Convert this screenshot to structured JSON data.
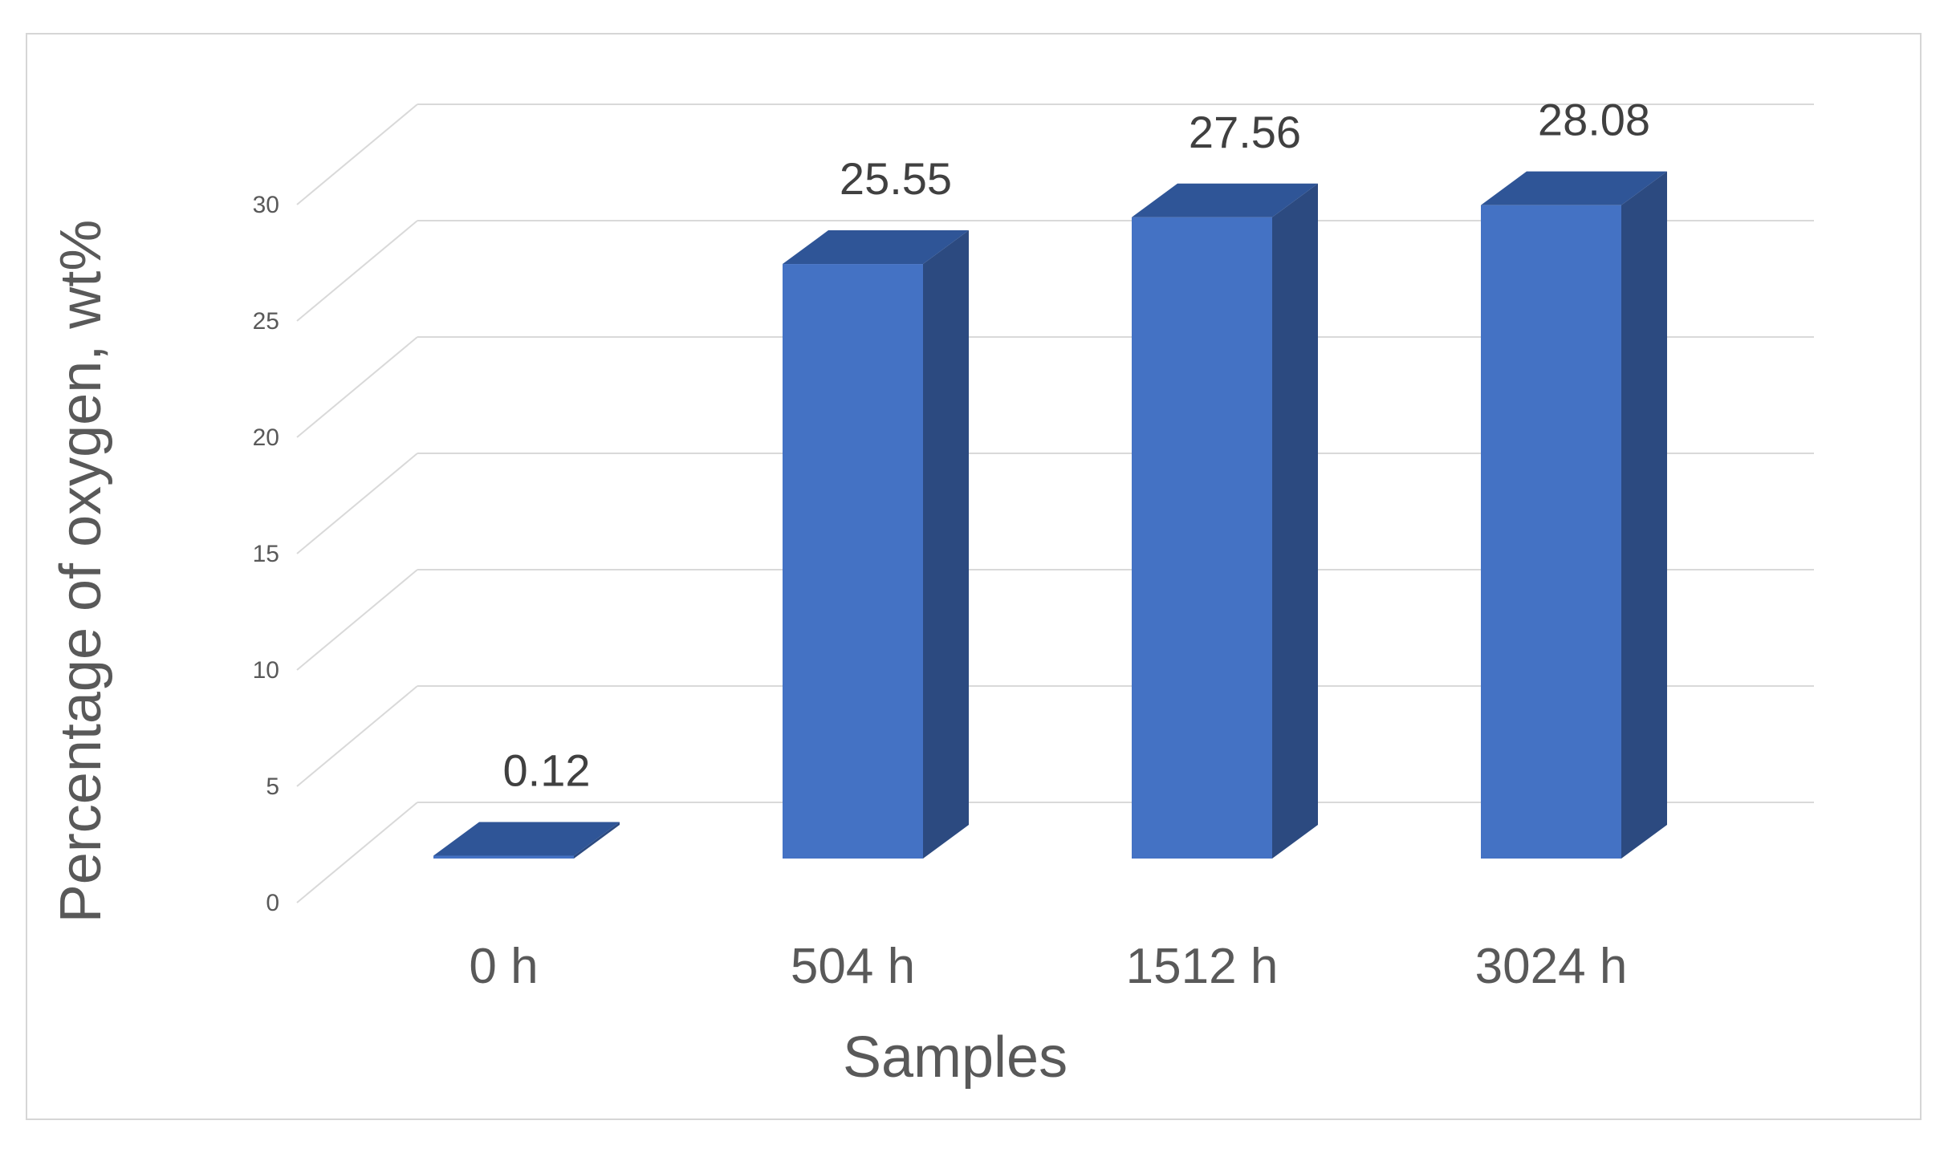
{
  "chart_data": {
    "type": "bar",
    "title": "",
    "xlabel": "Samples",
    "ylabel": "Percentage of oxygen,  wt%",
    "categories": [
      "0 h",
      "504 h",
      "1512 h",
      "3024 h"
    ],
    "values": [
      0.12,
      25.55,
      27.56,
      28.08
    ],
    "data_labels": [
      "0.12",
      "25.55",
      "27.56",
      "28.08"
    ],
    "ylim": [
      0,
      30
    ],
    "yticks": [
      "0",
      "5",
      "10",
      "15",
      "20",
      "25",
      "30"
    ],
    "grid": true,
    "style": "3d-column",
    "colors": {
      "bar_front": "#4472C4",
      "bar_side": "#2C4A80",
      "bar_top": "#2F5597",
      "grid": "#D9D9D9"
    }
  }
}
